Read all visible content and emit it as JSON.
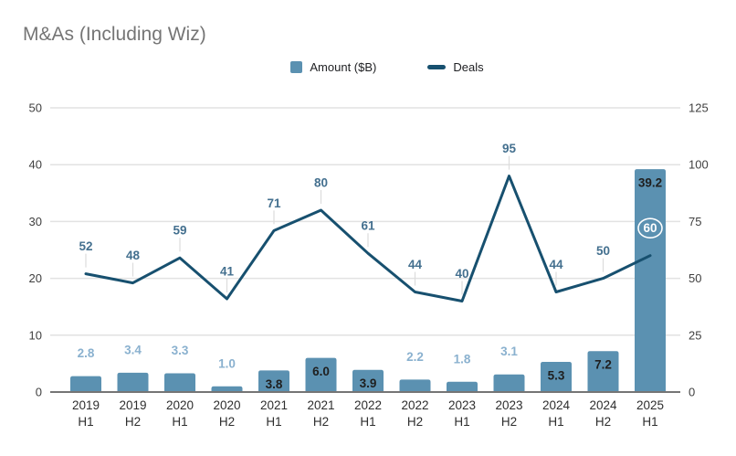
{
  "title": "M&As (Including Wiz)",
  "legend": {
    "amount_label": "Amount ($B)",
    "deals_label": "Deals"
  },
  "colors": {
    "bar": "#5b91b1",
    "line": "#17506f",
    "deal_label": "#44708f",
    "bar_label_outside": "#8ab1cf",
    "bar_label_inside": "#1f1f1f",
    "highlight_label": "#ffffff",
    "title": "#757575",
    "axis_text": "#3f3f3f",
    "category_text": "#2e2e2e",
    "grid": "#e2e2e2",
    "baseline": "#757575",
    "leader": "#dcdcdc"
  },
  "chart_data": {
    "type": "combo-bar-line",
    "title": "M&As (Including Wiz)",
    "categories": [
      {
        "year": "2019",
        "half": "H1"
      },
      {
        "year": "2019",
        "half": "H2"
      },
      {
        "year": "2020",
        "half": "H1"
      },
      {
        "year": "2020",
        "half": "H2"
      },
      {
        "year": "2021",
        "half": "H1"
      },
      {
        "year": "2021",
        "half": "H2"
      },
      {
        "year": "2022",
        "half": "H1"
      },
      {
        "year": "2022",
        "half": "H2"
      },
      {
        "year": "2023",
        "half": "H1"
      },
      {
        "year": "2023",
        "half": "H2"
      },
      {
        "year": "2024",
        "half": "H1"
      },
      {
        "year": "2024",
        "half": "H2"
      },
      {
        "year": "2025",
        "half": "H1"
      }
    ],
    "series": [
      {
        "name": "Amount ($B)",
        "type": "bar",
        "axis": "left",
        "values": [
          2.8,
          3.4,
          3.3,
          1.0,
          3.8,
          6.0,
          3.9,
          2.2,
          1.8,
          3.1,
          5.3,
          7.2,
          39.2
        ],
        "labels_inside": [
          false,
          false,
          false,
          false,
          true,
          true,
          true,
          false,
          false,
          false,
          true,
          true,
          true
        ]
      },
      {
        "name": "Deals",
        "type": "line",
        "axis": "right",
        "values": [
          52,
          48,
          59,
          41,
          71,
          80,
          61,
          44,
          40,
          95,
          44,
          50,
          60
        ],
        "highlight_last": true
      }
    ],
    "left_axis": {
      "min": 0,
      "max": 50,
      "ticks": [
        0,
        10,
        20,
        30,
        40,
        50
      ]
    },
    "right_axis": {
      "min": 0,
      "max": 125,
      "ticks": [
        0,
        25,
        50,
        75,
        100,
        125
      ]
    },
    "grid": true,
    "legend_position": "top"
  }
}
